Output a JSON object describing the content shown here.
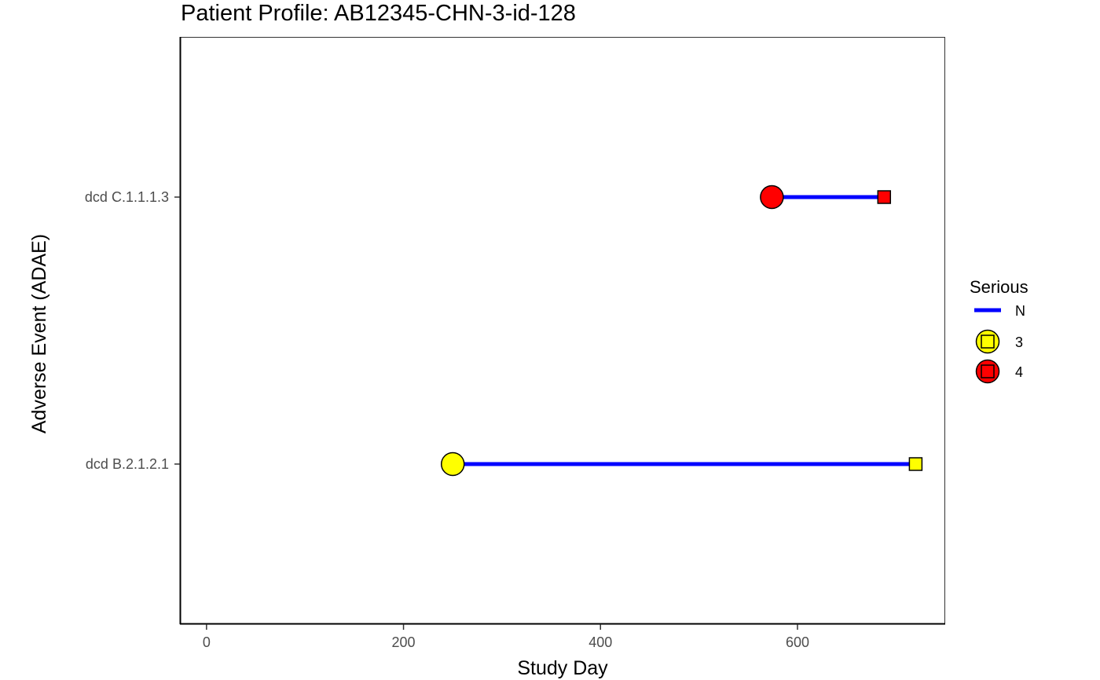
{
  "chart_data": {
    "type": "timeline",
    "title": "Patient Profile:  AB12345-CHN-3-id-128",
    "xlabel": "Study Day",
    "ylabel": "Adverse Event (ADAE)",
    "xlim": [
      -27,
      750
    ],
    "x_ticks": [
      0,
      200,
      400,
      600
    ],
    "categories": [
      "dcd C.1.1.1.3",
      "dcd B.2.1.2.1"
    ],
    "events": [
      {
        "category": "dcd C.1.1.1.3",
        "start": 574,
        "end": 688,
        "serious": "N",
        "grade": "4"
      },
      {
        "category": "dcd B.2.1.2.1",
        "start": 250,
        "end": 720,
        "serious": "N",
        "grade": "3"
      }
    ],
    "legend": {
      "title": "Serious",
      "position": "right",
      "line_items": [
        {
          "label": "N",
          "color": "#0000ff"
        }
      ],
      "grade_items": [
        {
          "label": "3",
          "color": "#ffff00"
        },
        {
          "label": "4",
          "color": "#ff0000"
        }
      ]
    },
    "grid": false
  }
}
